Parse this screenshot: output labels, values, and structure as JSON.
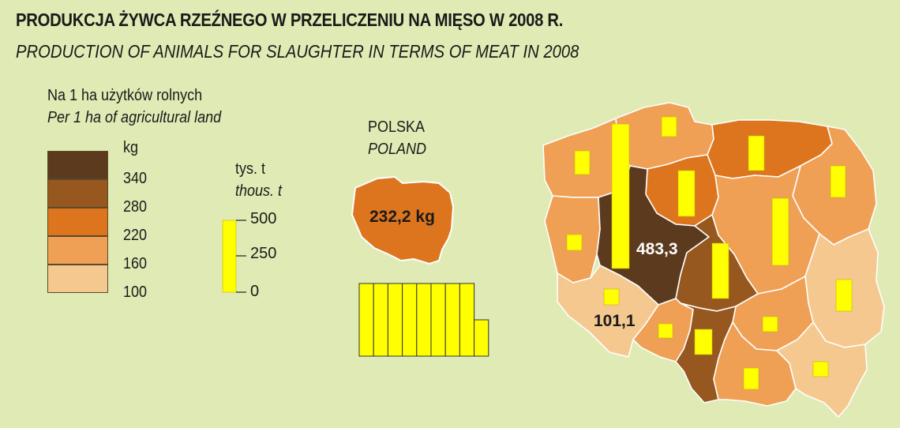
{
  "title": "PRODUKCJA ŻYWCA RZEŹNEGO W PRZELICZENIU NA MIĘSO W 2008 R.",
  "subtitle": "PRODUCTION OF ANIMALS FOR SLAUGHTER IN TERMS OF MEAT IN 2008",
  "legend": {
    "caption_pl": "Na 1 ha użytków rolnych",
    "caption_en": "Per 1 ha of agricultural land",
    "unit": "kg",
    "thresholds": [
      "340",
      "280",
      "220",
      "160",
      "100"
    ],
    "classes": [
      {
        "label": "> 340",
        "color": "#5c3a1e"
      },
      {
        "label": "280 – 340",
        "color": "#96581f"
      },
      {
        "label": "220 – 280",
        "color": "#dd741e"
      },
      {
        "label": "160 – 220",
        "color": "#f0a055"
      },
      {
        "label": "100 – 160",
        "color": "#f5c890"
      }
    ]
  },
  "bar_legend": {
    "unit_pl": "tys. t",
    "unit_en": "thous. t",
    "ticks": [
      "500",
      "250",
      "0"
    ],
    "bar_color": "#ffff00"
  },
  "poland": {
    "label_pl": "POLSKA",
    "label_en": "POLAND",
    "value_text": "232,2 kg",
    "fill": "#dd741e",
    "stack_bars_thous_t": [
      500,
      500,
      500,
      500,
      500,
      500,
      500,
      500,
      250
    ]
  },
  "map_labels": {
    "max_value": "483,3",
    "min_value": "101,1"
  },
  "chart_data": {
    "type": "choropleth-with-bars",
    "title": "PRODUKCJA ŻYWCA RZEŹNEGO W PRZELICZENIU NA MIĘSO W 2008 R.",
    "units": {
      "choropleth": "kg",
      "bars": "tys. t"
    },
    "national_value_kg_per_ha": 232.2,
    "max_kg_per_ha": 483.3,
    "min_kg_per_ha": 101.1,
    "bar_scale_max": 500
  }
}
